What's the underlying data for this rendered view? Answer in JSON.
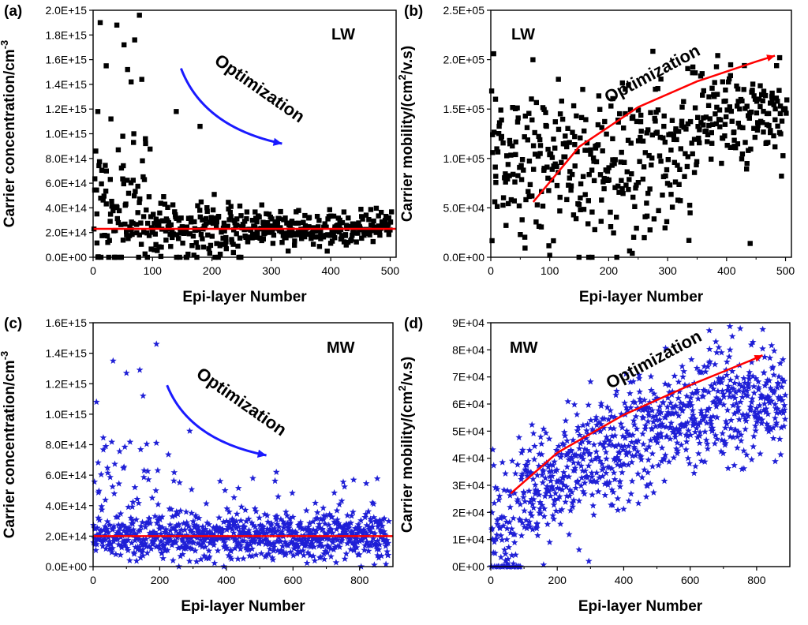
{
  "figure": {
    "background": "#ffffff"
  },
  "chart_data": [
    {
      "panel": "(a)",
      "type": "scatter",
      "tag": "LW",
      "xlabel": "Epi-layer Number",
      "ylabel_main": "Carrier concentration/cm",
      "ylabel_sup": "-3",
      "ylabel_tail": "",
      "xlim": [
        0,
        510
      ],
      "ylim": [
        0,
        2000000000000000.0
      ],
      "xticks": [
        0,
        100,
        200,
        300,
        400,
        500
      ],
      "xtick_labels": [
        "0",
        "100",
        "200",
        "300",
        "400",
        "500"
      ],
      "yticks": [
        0,
        200000000000000.0,
        400000000000000.0,
        600000000000000.0,
        800000000000000.0,
        1000000000000000.0,
        1200000000000000.0,
        1400000000000000.0,
        1600000000000000.0,
        1800000000000000.0,
        2000000000000000.0
      ],
      "ytick_labels": [
        "0.0E+00",
        "2.0E+14",
        "4.0E+14",
        "6.0E+14",
        "8.0E+14",
        "1.0E+15",
        "1.2E+15",
        "1.4E+15",
        "1.6E+15",
        "1.8E+15",
        "2.0E+15"
      ],
      "marker": "square",
      "marker_color": "#000000",
      "n_points": 500,
      "trend": {
        "type": "horizontal",
        "color": "#ff0000",
        "x": [
          0,
          510
        ],
        "y": [
          230000000000000.0,
          230000000000000.0
        ]
      },
      "annotation": {
        "text": "Optimization",
        "color": "#000000",
        "arrow_color": "#1a1aff",
        "arrow_from": [
          148,
          1530000000000000.0
        ],
        "arrow_to": [
          318,
          920000000000000.0
        ]
      },
      "points_outliers": [
        [
          8,
          1180000000000000.0
        ],
        [
          12,
          1900000000000000.0
        ],
        [
          22,
          1550000000000000.0
        ],
        [
          30,
          1120000000000000.0
        ],
        [
          40,
          1880000000000000.0
        ],
        [
          52,
          1720000000000000.0
        ],
        [
          58,
          1520000000000000.0
        ],
        [
          64,
          1420000000000000.0
        ],
        [
          70,
          1760000000000000.0
        ],
        [
          78,
          1960000000000000.0
        ],
        [
          82,
          1440000000000000.0
        ],
        [
          140,
          1180000000000000.0
        ],
        [
          180,
          1060000000000000.0
        ],
        [
          50,
          980000000000000.0
        ],
        [
          68,
          930000000000000.0
        ],
        [
          88,
          960000000000000.0
        ]
      ]
    },
    {
      "panel": "(b)",
      "type": "scatter",
      "tag": "LW",
      "xlabel": "Epi-layer Number",
      "ylabel_main": "Carrier mobility/(cm",
      "ylabel_sup": "2",
      "ylabel_tail": "/v.s)",
      "xlim": [
        0,
        510
      ],
      "ylim": [
        0,
        250000.0
      ],
      "xticks": [
        0,
        100,
        200,
        300,
        400,
        500
      ],
      "xtick_labels": [
        "0",
        "100",
        "200",
        "300",
        "400",
        "500"
      ],
      "yticks": [
        0,
        50000.0,
        100000.0,
        150000.0,
        200000.0,
        250000.0
      ],
      "ytick_labels": [
        "0.0E+00",
        "5.0E+04",
        "1.0E+05",
        "1.5E+05",
        "2.0E+05",
        "2.5E+05"
      ],
      "marker": "square",
      "marker_color": "#000000",
      "n_points": 500,
      "trend": {
        "type": "curve",
        "color": "#ff0000",
        "x": [
          72,
          150,
          250,
          350,
          450,
          482
        ],
        "y": [
          56000.0,
          112000.0,
          152000.0,
          178000.0,
          198000.0,
          204000.0
        ]
      },
      "annotation": {
        "text": "Optimization",
        "color": "#000000"
      },
      "points_outliers": [
        [
          5,
          206000.0
        ],
        [
          490,
          202000.0
        ],
        [
          100,
          2000.0
        ],
        [
          240,
          4000.0
        ],
        [
          440,
          14000.0
        ],
        [
          8,
          160000.0
        ]
      ]
    },
    {
      "panel": "(c)",
      "type": "scatter",
      "tag": "MW",
      "xlabel": "Epi-layer Number",
      "ylabel_main": "Carrier concentration/cm",
      "ylabel_sup": "-3",
      "ylabel_tail": "",
      "xlim": [
        0,
        900
      ],
      "ylim": [
        0,
        1600000000000000.0
      ],
      "xticks": [
        0,
        200,
        400,
        600,
        800
      ],
      "xtick_labels": [
        "0",
        "200",
        "400",
        "600",
        "800"
      ],
      "yticks": [
        0,
        200000000000000.0,
        400000000000000.0,
        600000000000000.0,
        800000000000000.0,
        1000000000000000.0,
        1200000000000000.0,
        1400000000000000.0,
        1600000000000000.0
      ],
      "ytick_labels": [
        "0.0E+00",
        "2.0E+14",
        "4.0E+14",
        "6.0E+14",
        "8.0E+14",
        "1.0E+15",
        "1.2E+15",
        "1.4E+15",
        "1.6E+15"
      ],
      "marker": "star",
      "marker_color": "#1f1fd6",
      "n_points": 900,
      "trend": {
        "type": "horizontal",
        "color": "#ff0000",
        "x": [
          0,
          900
        ],
        "y": [
          200000000000000.0,
          200000000000000.0
        ]
      },
      "annotation": {
        "text": "Optimization",
        "color": "#000000",
        "arrow_color": "#1a1aff",
        "arrow_from": [
          222,
          1190000000000000.0
        ],
        "arrow_to": [
          520,
          730000000000000.0
        ]
      },
      "points_outliers": [
        [
          10,
          1080000000000000.0
        ],
        [
          60,
          1350000000000000.0
        ],
        [
          100,
          1270000000000000.0
        ],
        [
          140,
          1290000000000000.0
        ],
        [
          150,
          1120000000000000.0
        ],
        [
          190,
          1460000000000000.0
        ],
        [
          290,
          890000000000000.0
        ],
        [
          550,
          620000000000000.0
        ]
      ]
    },
    {
      "panel": "(d)",
      "type": "scatter",
      "tag": "MW",
      "xlabel": "Epi-layer Number",
      "ylabel_main": "Carrier mobility/(cm",
      "ylabel_sup": "2",
      "ylabel_tail": "/v.s)",
      "xlim": [
        0,
        900
      ],
      "ylim": [
        0,
        90000.0
      ],
      "xticks": [
        0,
        200,
        400,
        600,
        800
      ],
      "xtick_labels": [
        "0",
        "200",
        "400",
        "600",
        "800"
      ],
      "yticks": [
        0,
        10000.0,
        20000.0,
        30000.0,
        40000.0,
        50000.0,
        60000.0,
        70000.0,
        80000.0,
        90000.0
      ],
      "ytick_labels": [
        "0E+00",
        "1E+04",
        "2E+04",
        "3E+04",
        "4E+04",
        "5E+04",
        "6E+04",
        "7E+04",
        "8E+04",
        "9E+04"
      ],
      "marker": "star",
      "marker_color": "#1f1fd6",
      "n_points": 900,
      "trend": {
        "type": "curve",
        "color": "#ff0000",
        "x": [
          60,
          200,
          400,
          600,
          780,
          818
        ],
        "y": [
          27000.0,
          42000.0,
          56000.0,
          67000.0,
          76000.0,
          78000.0
        ]
      },
      "annotation": {
        "text": "Optimization",
        "color": "#000000"
      },
      "points_outliers": [
        [
          840,
          77000.0
        ],
        [
          720,
          80000.0
        ],
        [
          680,
          79000.0
        ],
        [
          295,
          2000.0
        ]
      ]
    }
  ]
}
